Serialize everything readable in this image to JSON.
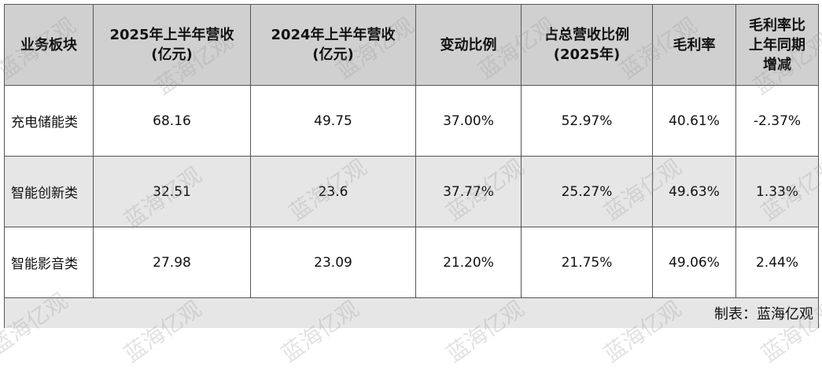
{
  "table": {
    "headers": [
      "业务板块",
      "2025年上半年营收\n(亿元)",
      "2024年上半年营收\n(亿元)",
      "变动比例",
      "占总营收比例\n(2025年)",
      "毛利率",
      "毛利率比\n上年同期\n增减"
    ],
    "rows": [
      [
        "充电储能类",
        "68.16",
        "49.75",
        "37.00%",
        "52.97%",
        "40.61%",
        "-2.37%"
      ],
      [
        "智能创新类",
        "32.51",
        "23.6",
        "37.77%",
        "25.27%",
        "49.63%",
        "1.33%"
      ],
      [
        "智能影音类",
        "27.98",
        "23.09",
        "21.20%",
        "21.75%",
        "49.06%",
        "2.44%"
      ]
    ],
    "footer": "制表：蓝海亿观"
  },
  "watermark": "蓝海亿观",
  "colors": {
    "header_bg": "#d0d0d0",
    "alt_row_bg": "#e6e6e6",
    "border": "#555555"
  }
}
